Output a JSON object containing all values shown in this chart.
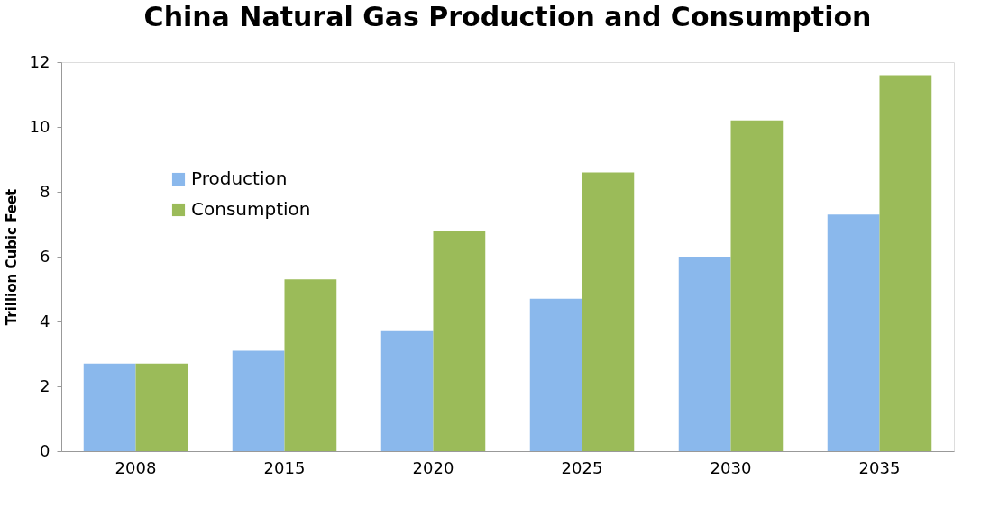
{
  "chart_data": {
    "type": "bar",
    "title": "China Natural Gas Production and Consumption",
    "ylabel": "Trillion Cubic Feet",
    "categories": [
      "2008",
      "2015",
      "2020",
      "2025",
      "2030",
      "2035"
    ],
    "series": [
      {
        "name": "Production",
        "color": "#8ab8ec",
        "values": [
          2.7,
          3.1,
          3.7,
          4.7,
          6.0,
          7.3
        ]
      },
      {
        "name": "Consumption",
        "color": "#9bbb59",
        "values": [
          2.7,
          5.3,
          6.8,
          8.6,
          10.2,
          11.6
        ]
      }
    ],
    "ylim": [
      0,
      12
    ],
    "yticks": [
      0,
      2,
      4,
      6,
      8,
      10,
      12
    ],
    "grid": false,
    "legend": "top left"
  }
}
